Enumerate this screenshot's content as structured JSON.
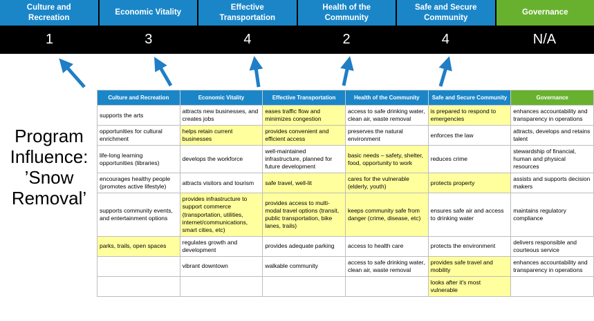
{
  "title": {
    "lines": [
      "Program",
      "Influence:",
      "’Snow",
      "Removal’"
    ]
  },
  "colors": {
    "pillar_blue": "#1a86c8",
    "pillar_green": "#68b12f",
    "highlight_yellow": "#ffff9e",
    "band_black": "#000000",
    "arrow_blue": "#1f7ec6"
  },
  "summary": {
    "pillars": [
      {
        "label": "Culture and Recreation",
        "score": "1",
        "color": "blue"
      },
      {
        "label": "Economic Vitality",
        "score": "3",
        "color": "blue"
      },
      {
        "label": "Effective Transportation",
        "score": "4",
        "color": "blue"
      },
      {
        "label": "Health of the Community",
        "score": "2",
        "color": "blue"
      },
      {
        "label": "Safe and Secure Community",
        "score": "4",
        "color": "blue"
      },
      {
        "label": "Governance",
        "score": "N/A",
        "color": "green"
      }
    ]
  },
  "table": {
    "headers": [
      {
        "label": "Culture and Recreation",
        "color": "blue"
      },
      {
        "label": "Economic Vitality",
        "color": "blue"
      },
      {
        "label": "Effective Transportation",
        "color": "blue"
      },
      {
        "label": "Health of the Community",
        "color": "blue"
      },
      {
        "label": "Safe and Secure Community",
        "color": "blue"
      },
      {
        "label": "Governance",
        "color": "green"
      }
    ],
    "rows": [
      [
        {
          "text": "supports the arts",
          "highlight": false
        },
        {
          "text": "attracts new businesses, and creates jobs",
          "highlight": false
        },
        {
          "text": "eases traffic flow and minimizes congestion",
          "highlight": true
        },
        {
          "text": "access to safe drinking water, clean air, waste removal",
          "highlight": false
        },
        {
          "text": "is prepared to respond to emergencies",
          "highlight": true
        },
        {
          "text": "enhances accountability and transparency in operations",
          "highlight": false
        }
      ],
      [
        {
          "text": "opportunities for cultural enrichment",
          "highlight": false
        },
        {
          "text": "helps retain current businesses",
          "highlight": true
        },
        {
          "text": "provides convenient and efficient access",
          "highlight": true
        },
        {
          "text": "preserves the natural environment",
          "highlight": false
        },
        {
          "text": "enforces the law",
          "highlight": false
        },
        {
          "text": "attracts, develops and retains talent",
          "highlight": false
        }
      ],
      [
        {
          "text": "life-long learning opportunities (libraries)",
          "highlight": false
        },
        {
          "text": "develops the workforce",
          "highlight": false
        },
        {
          "text": "well-maintained infrastructure, planned for future development",
          "highlight": false
        },
        {
          "text": "basic needs – safety, shelter, food, opportunity to work",
          "highlight": true
        },
        {
          "text": "reduces crime",
          "highlight": false
        },
        {
          "text": "stewardship of financial, human and physical resources",
          "highlight": false
        }
      ],
      [
        {
          "text": "encourages healthy people (promotes active lifestyle)",
          "highlight": false
        },
        {
          "text": "attracts visitors and tourism",
          "highlight": false
        },
        {
          "text": "safe travel, well-lit",
          "highlight": true
        },
        {
          "text": "cares for the vulnerable (elderly, youth)",
          "highlight": true
        },
        {
          "text": "protects property",
          "highlight": true
        },
        {
          "text": "assists and supports decision makers",
          "highlight": false
        }
      ],
      [
        {
          "text": "supports community events, and entertainment options",
          "highlight": false
        },
        {
          "text": "provides infrastructure to support commerce (transportation, utilities, internet/communications, smart cities, etc)",
          "highlight": true
        },
        {
          "text": "provides access to multi-modal travel options (transit, public transportation, bike lanes, trails)",
          "highlight": true
        },
        {
          "text": "keeps community safe from danger (crime, disease, etc)",
          "highlight": true
        },
        {
          "text": "ensures safe air and access to drinking water",
          "highlight": false
        },
        {
          "text": "maintains regulatory compliance",
          "highlight": false
        }
      ],
      [
        {
          "text": "parks, trails, open spaces",
          "highlight": true
        },
        {
          "text": "regulates growth and development",
          "highlight": false
        },
        {
          "text": "provides adequate parking",
          "highlight": false
        },
        {
          "text": "access to health care",
          "highlight": false
        },
        {
          "text": "protects the environment",
          "highlight": false
        },
        {
          "text": "delivers responsible and courteous service",
          "highlight": false
        }
      ],
      [
        {
          "text": "",
          "highlight": false
        },
        {
          "text": "vibrant downtown",
          "highlight": false
        },
        {
          "text": "walkable community",
          "highlight": false
        },
        {
          "text": "access to safe drinking water, clean air, waste removal",
          "highlight": false
        },
        {
          "text": "provides safe travel and mobility",
          "highlight": true
        },
        {
          "text": "enhances accountability and transparency in operations",
          "highlight": false
        }
      ],
      [
        {
          "text": "",
          "highlight": false
        },
        {
          "text": "",
          "highlight": false
        },
        {
          "text": "",
          "highlight": false
        },
        {
          "text": "",
          "highlight": false
        },
        {
          "text": "looks after it's most vulnerable",
          "highlight": true
        },
        {
          "text": "",
          "highlight": false
        }
      ]
    ]
  }
}
